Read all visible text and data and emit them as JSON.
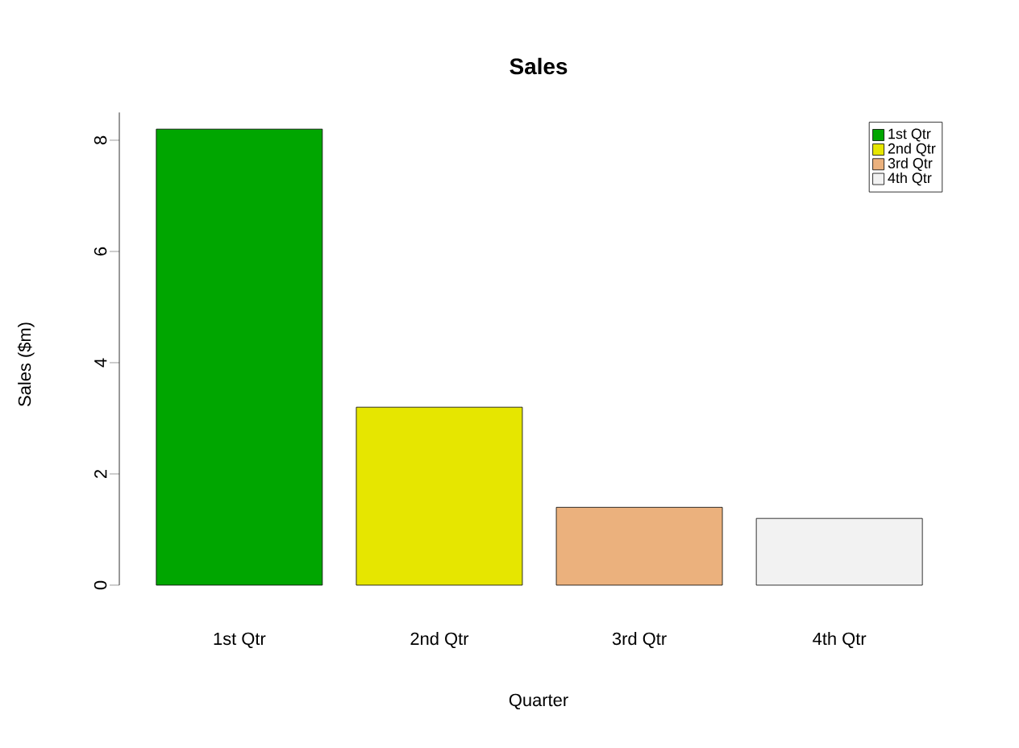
{
  "chart_data": {
    "type": "bar",
    "title": "Sales",
    "xlabel": "Quarter",
    "ylabel": "Sales ($m)",
    "categories": [
      "1st Qtr",
      "2nd Qtr",
      "3rd Qtr",
      "4th Qtr"
    ],
    "series": [
      {
        "name": "1st Qtr",
        "color": "#00a600",
        "values": [
          8.2,
          null,
          null,
          null
        ]
      },
      {
        "name": "2nd Qtr",
        "color": "#e6e600",
        "values": [
          null,
          3.2,
          null,
          null
        ]
      },
      {
        "name": "3rd Qtr",
        "color": "#ebb17d",
        "values": [
          null,
          null,
          1.4,
          null
        ]
      },
      {
        "name": "4th Qtr",
        "color": "#f2f2f2",
        "values": [
          null,
          null,
          null,
          1.2
        ]
      }
    ],
    "ylim": [
      0,
      8.5
    ],
    "yticks": [
      0,
      2,
      4,
      6,
      8
    ],
    "legend": "top right"
  }
}
